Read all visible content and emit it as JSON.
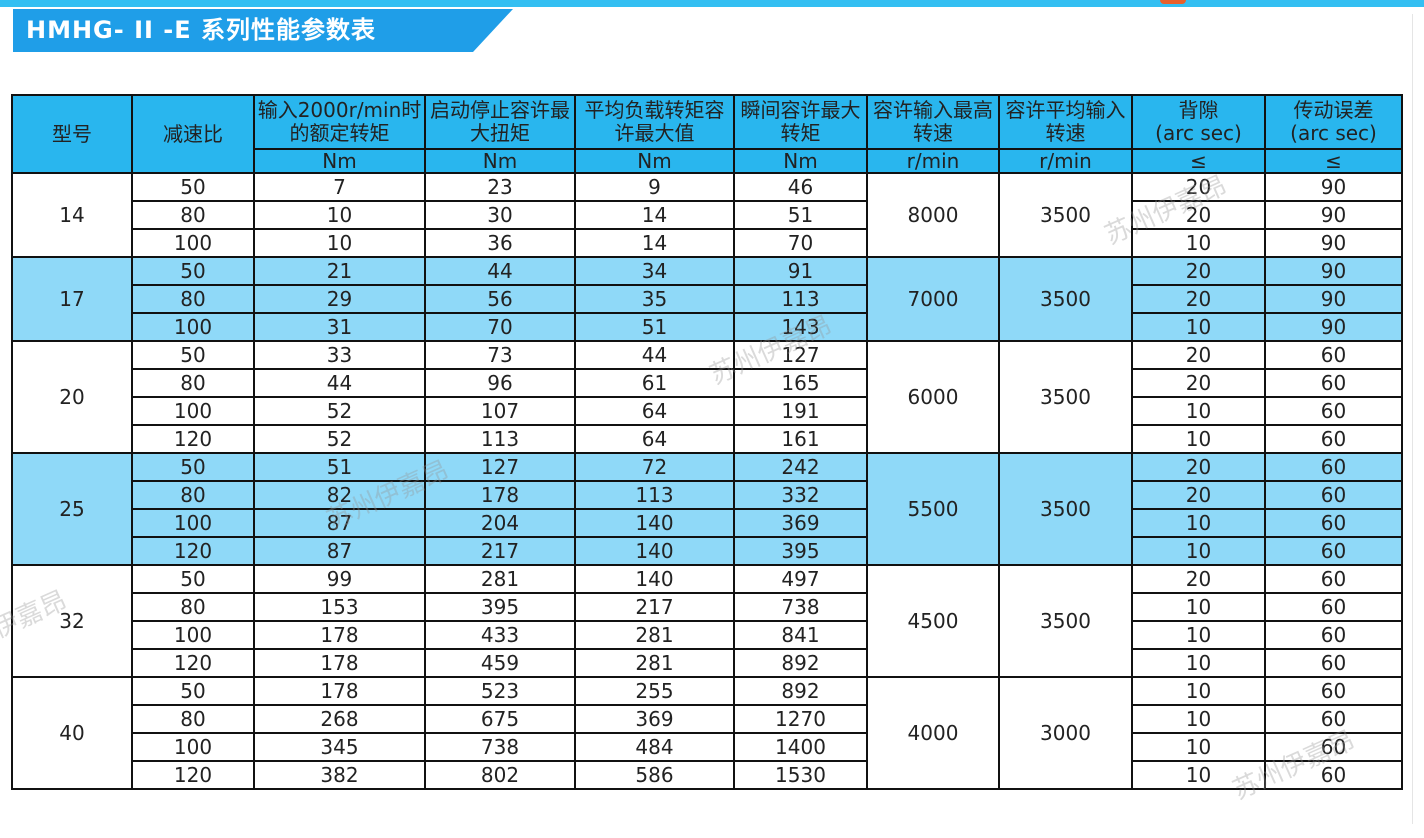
{
  "title": "HMHG- II -E 系列性能参数表",
  "header": {
    "model": "型号",
    "ratio": "减速比",
    "rated_torque": "输入2000r/min时的额定转矩",
    "start_stop_torque": "启动停止容许最大扭矩",
    "avg_load_torque": "平均负载转矩容许最大值",
    "instant_torque": "瞬间容许最大转矩",
    "max_input_speed": "容许输入最高转速",
    "avg_input_speed": "容许平均输入转速",
    "backlash": "背隙\n(arc sec)",
    "transmission_error": "传动误差\n(arc sec)"
  },
  "units": {
    "rated_torque": "Nm",
    "start_stop_torque": "Nm",
    "avg_load_torque": "Nm",
    "instant_torque": "Nm",
    "max_input_speed": "r/min",
    "avg_input_speed": "r/min",
    "backlash": "≤",
    "transmission_error": "≤"
  },
  "groups": [
    {
      "model": "14",
      "max_speed": "8000",
      "avg_speed": "3500",
      "alt": false,
      "rows": [
        {
          "ratio": "50",
          "rated": "7",
          "start": "23",
          "avg": "9",
          "instant": "46",
          "backlash": "20",
          "error": "90"
        },
        {
          "ratio": "80",
          "rated": "10",
          "start": "30",
          "avg": "14",
          "instant": "51",
          "backlash": "20",
          "error": "90"
        },
        {
          "ratio": "100",
          "rated": "10",
          "start": "36",
          "avg": "14",
          "instant": "70",
          "backlash": "10",
          "error": "90"
        }
      ]
    },
    {
      "model": "17",
      "max_speed": "7000",
      "avg_speed": "3500",
      "alt": true,
      "rows": [
        {
          "ratio": "50",
          "rated": "21",
          "start": "44",
          "avg": "34",
          "instant": "91",
          "backlash": "20",
          "error": "90"
        },
        {
          "ratio": "80",
          "rated": "29",
          "start": "56",
          "avg": "35",
          "instant": "113",
          "backlash": "20",
          "error": "90"
        },
        {
          "ratio": "100",
          "rated": "31",
          "start": "70",
          "avg": "51",
          "instant": "143",
          "backlash": "10",
          "error": "90"
        }
      ]
    },
    {
      "model": "20",
      "max_speed": "6000",
      "avg_speed": "3500",
      "alt": false,
      "rows": [
        {
          "ratio": "50",
          "rated": "33",
          "start": "73",
          "avg": "44",
          "instant": "127",
          "backlash": "20",
          "error": "60"
        },
        {
          "ratio": "80",
          "rated": "44",
          "start": "96",
          "avg": "61",
          "instant": "165",
          "backlash": "20",
          "error": "60"
        },
        {
          "ratio": "100",
          "rated": "52",
          "start": "107",
          "avg": "64",
          "instant": "191",
          "backlash": "10",
          "error": "60"
        },
        {
          "ratio": "120",
          "rated": "52",
          "start": "113",
          "avg": "64",
          "instant": "161",
          "backlash": "10",
          "error": "60"
        }
      ]
    },
    {
      "model": "25",
      "max_speed": "5500",
      "avg_speed": "3500",
      "alt": true,
      "rows": [
        {
          "ratio": "50",
          "rated": "51",
          "start": "127",
          "avg": "72",
          "instant": "242",
          "backlash": "20",
          "error": "60"
        },
        {
          "ratio": "80",
          "rated": "82",
          "start": "178",
          "avg": "113",
          "instant": "332",
          "backlash": "20",
          "error": "60"
        },
        {
          "ratio": "100",
          "rated": "87",
          "start": "204",
          "avg": "140",
          "instant": "369",
          "backlash": "10",
          "error": "60"
        },
        {
          "ratio": "120",
          "rated": "87",
          "start": "217",
          "avg": "140",
          "instant": "395",
          "backlash": "10",
          "error": "60"
        }
      ]
    },
    {
      "model": "32",
      "max_speed": "4500",
      "avg_speed": "3500",
      "alt": false,
      "rows": [
        {
          "ratio": "50",
          "rated": "99",
          "start": "281",
          "avg": "140",
          "instant": "497",
          "backlash": "20",
          "error": "60"
        },
        {
          "ratio": "80",
          "rated": "153",
          "start": "395",
          "avg": "217",
          "instant": "738",
          "backlash": "10",
          "error": "60"
        },
        {
          "ratio": "100",
          "rated": "178",
          "start": "433",
          "avg": "281",
          "instant": "841",
          "backlash": "10",
          "error": "60"
        },
        {
          "ratio": "120",
          "rated": "178",
          "start": "459",
          "avg": "281",
          "instant": "892",
          "backlash": "10",
          "error": "60"
        }
      ]
    },
    {
      "model": "40",
      "max_speed": "4000",
      "avg_speed": "3000",
      "alt": false,
      "rows": [
        {
          "ratio": "50",
          "rated": "178",
          "start": "523",
          "avg": "255",
          "instant": "892",
          "backlash": "10",
          "error": "60"
        },
        {
          "ratio": "80",
          "rated": "268",
          "start": "675",
          "avg": "369",
          "instant": "1270",
          "backlash": "10",
          "error": "60"
        },
        {
          "ratio": "100",
          "rated": "345",
          "start": "738",
          "avg": "484",
          "instant": "1400",
          "backlash": "10",
          "error": "60"
        },
        {
          "ratio": "120",
          "rated": "382",
          "start": "802",
          "avg": "586",
          "instant": "1530",
          "backlash": "10",
          "error": "60"
        }
      ]
    }
  ],
  "watermark": "苏州伊嘉昂",
  "colors": {
    "header": "#29b6ee",
    "banner": "#1f9ee8",
    "alt_row": "#8fd9f8",
    "border": "#111111"
  }
}
